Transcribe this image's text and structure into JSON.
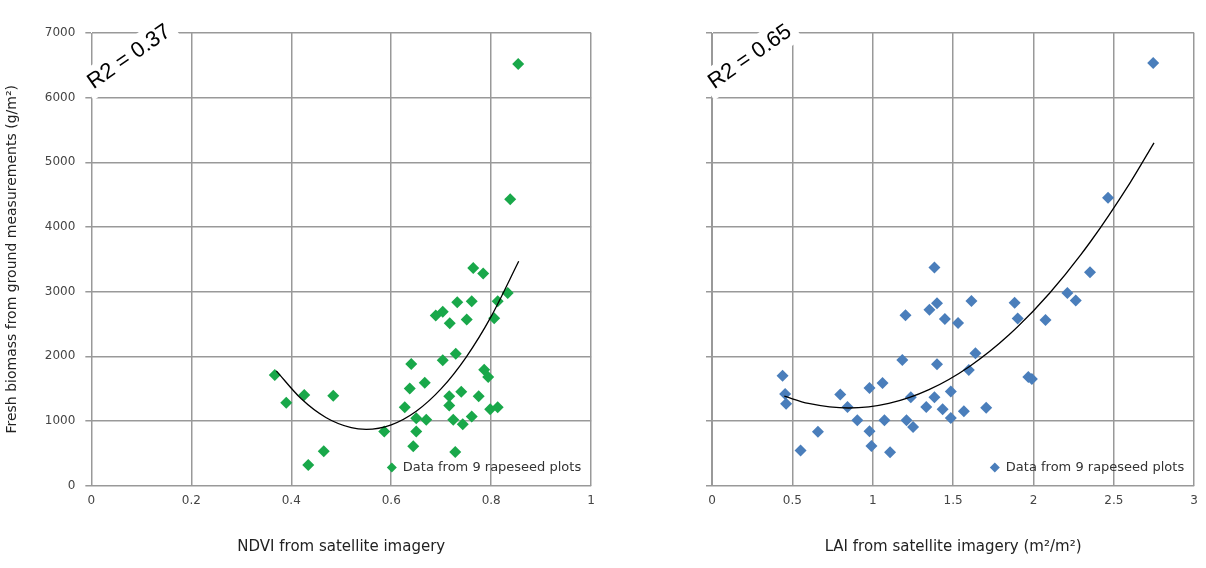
{
  "chart_data": [
    {
      "type": "scatter",
      "xlabel": "NDVI from satellite imagery",
      "ylabel": "Fresh biomass from ground measurements (g/m²)",
      "annotations": [
        "R2 = 0.37"
      ],
      "xlim": [
        0,
        1
      ],
      "xticks": [
        0,
        0.2,
        0.4,
        0.6,
        0.8,
        1
      ],
      "ylim": [
        0,
        7000
      ],
      "yticks": [
        0,
        1000,
        2000,
        3000,
        4000,
        5000,
        6000,
        7000
      ],
      "grid": true,
      "legend": "bottom right",
      "marker": "diamond",
      "series": [
        {
          "name": "Data from 9 rapeseed plots",
          "color": "#19a84a",
          "x": [
            0.854,
            0.838,
            0.764,
            0.784,
            0.833,
            0.813,
            0.732,
            0.761,
            0.689,
            0.703,
            0.717,
            0.751,
            0.806,
            0.703,
            0.729,
            0.64,
            0.786,
            0.794,
            0.667,
            0.637,
            0.716,
            0.74,
            0.775,
            0.367,
            0.39,
            0.426,
            0.484,
            0.627,
            0.716,
            0.798,
            0.813,
            0.65,
            0.67,
            0.724,
            0.743,
            0.761,
            0.586,
            0.65,
            0.644,
            0.728,
            0.465,
            0.434
          ],
          "values": [
            6520,
            4430,
            3365,
            3280,
            2980,
            2850,
            2835,
            2850,
            2630,
            2690,
            2510,
            2570,
            2590,
            1940,
            2040,
            1880,
            1790,
            1680,
            1590,
            1500,
            1380,
            1450,
            1380,
            1710,
            1280,
            1400,
            1390,
            1210,
            1240,
            1180,
            1210,
            1040,
            1020,
            1020,
            950,
            1070,
            835,
            835,
            610,
            520,
            530,
            320
          ]
        },
        {
          "type": "line",
          "color": "#000000",
          "marker": "none",
          "x": [
            0.37,
            0.42,
            0.47,
            0.52,
            0.55,
            0.6,
            0.65,
            0.7,
            0.75,
            0.8,
            0.855
          ],
          "values": [
            1775,
            1342,
            1049,
            895,
            870,
            940,
            1150,
            1499,
            1988,
            2617,
            3470
          ]
        }
      ]
    },
    {
      "type": "scatter",
      "xlabel": "LAI from satellite imagery (m²/m²)",
      "annotations": [
        "R2 = 0.65"
      ],
      "xlim": [
        0,
        3
      ],
      "xticks": [
        0,
        0.5,
        1,
        1.5,
        2,
        2.5,
        3
      ],
      "ylim": [
        0,
        7000
      ],
      "yticks": [
        0,
        1000,
        2000,
        3000,
        4000,
        5000,
        6000,
        7000
      ],
      "tick_labels": "x",
      "grid": true,
      "legend": "bottom right",
      "marker": "diamond",
      "series": [
        {
          "name": "Data from 9 rapeseed plots",
          "color": "#4a7ebb",
          "x": [
            2.745,
            2.464,
            2.352,
            2.211,
            2.263,
            1.883,
            1.902,
            2.075,
            1.968,
            1.99,
            1.384,
            1.4,
            1.353,
            1.614,
            1.204,
            1.449,
            1.531,
            1.639,
            1.184,
            1.4,
            1.598,
            0.439,
            0.455,
            0.461,
            0.798,
            0.98,
            1.061,
            1.237,
            1.384,
            1.486,
            1.333,
            1.435,
            1.567,
            1.706,
            0.843,
            0.904,
            1.073,
            1.21,
            1.251,
            1.486,
            0.98,
            0.659,
            0.551,
            0.992,
            1.108
          ],
          "values": [
            6535,
            4452,
            3300,
            2980,
            2863,
            2827,
            2584,
            2563,
            1680,
            1650,
            3372,
            2820,
            2720,
            2857,
            2633,
            2577,
            2515,
            2046,
            1944,
            1878,
            1786,
            1699,
            1418,
            1265,
            1408,
            1510,
            1587,
            1367,
            1367,
            1454,
            1214,
            1179,
            1148,
            1204,
            1214,
            1010,
            1010,
            1010,
            908,
            1046,
            842,
            832,
            541,
            612,
            515
          ]
        },
        {
          "type": "line",
          "color": "#000000",
          "marker": "none",
          "x": [
            0.45,
            0.6,
            0.85,
            1.1,
            1.35,
            1.6,
            1.85,
            2.1,
            2.35,
            2.6,
            2.75
          ],
          "values": [
            1382,
            1271,
            1200,
            1271,
            1484,
            1839,
            2336,
            2975,
            3756,
            4679,
            5301
          ]
        }
      ]
    }
  ]
}
